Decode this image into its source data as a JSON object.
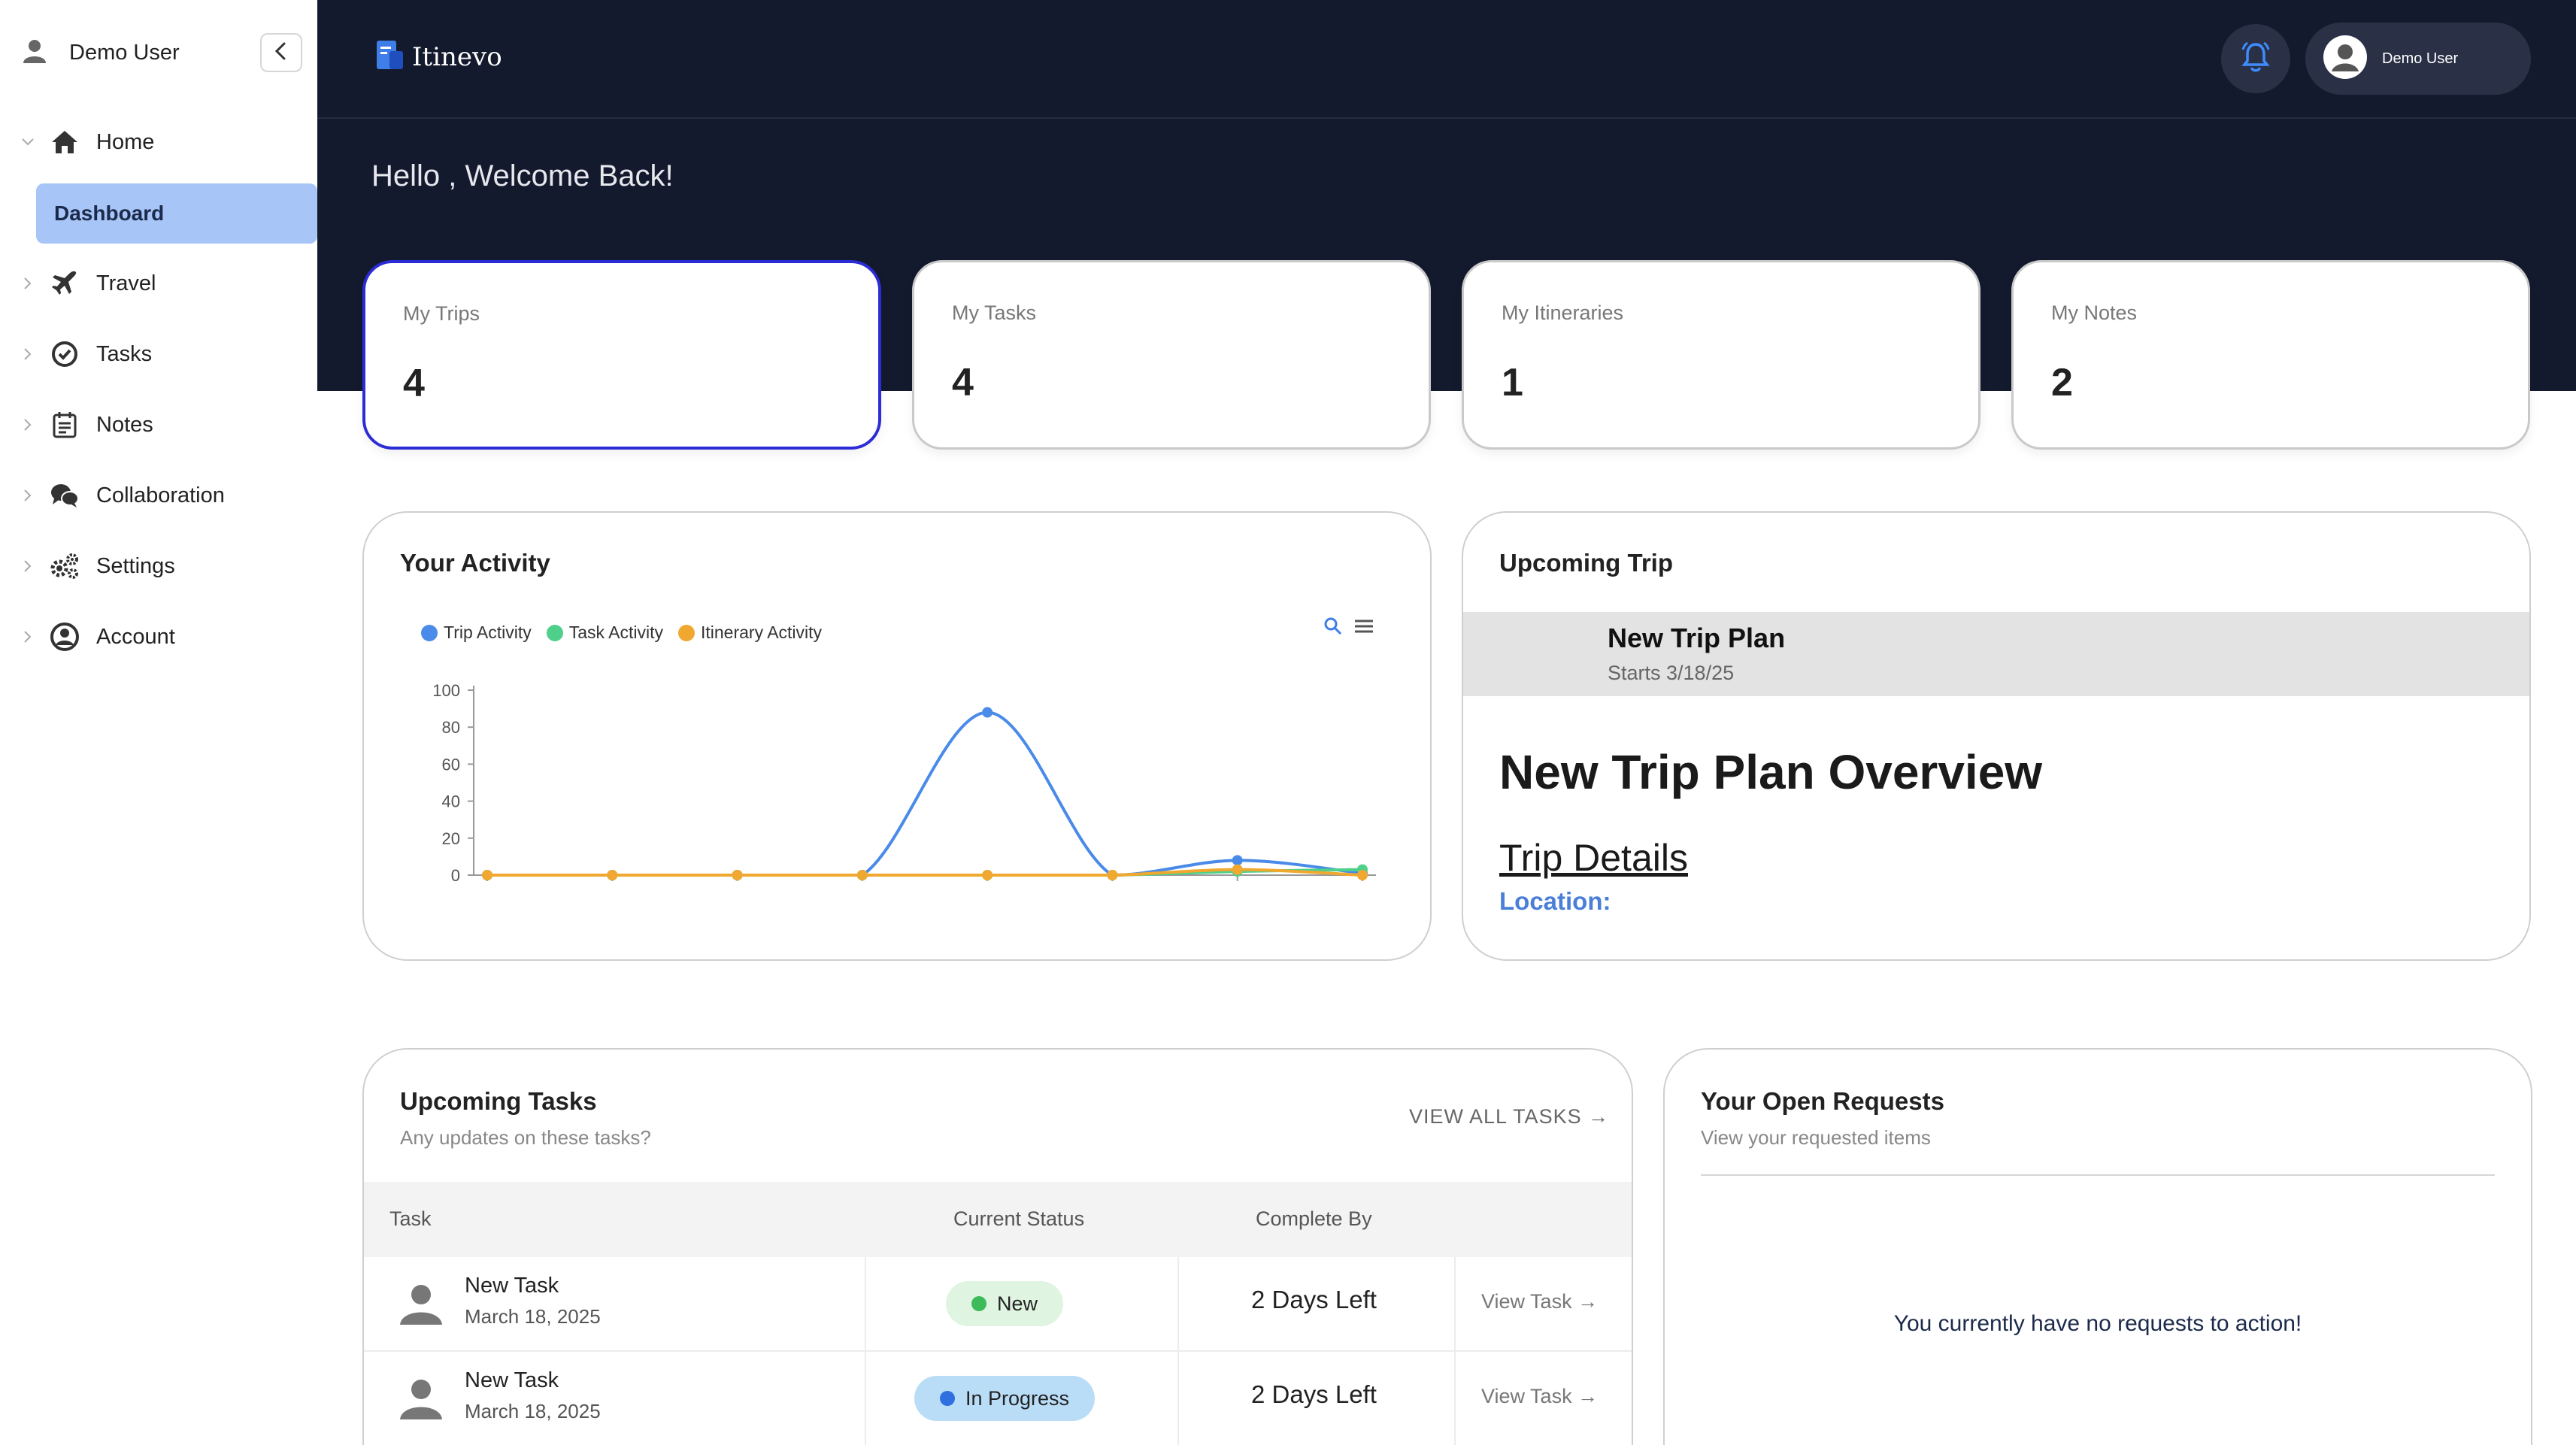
{
  "sidebar": {
    "user_name": "Demo User",
    "items": [
      {
        "label": "Home",
        "icon": "home-icon"
      },
      {
        "label": "Travel",
        "icon": "plane-icon"
      },
      {
        "label": "Tasks",
        "icon": "check-circle-icon"
      },
      {
        "label": "Notes",
        "icon": "notes-icon"
      },
      {
        "label": "Collaboration",
        "icon": "chat-icon"
      },
      {
        "label": "Settings",
        "icon": "gears-icon"
      },
      {
        "label": "Account",
        "icon": "account-icon"
      }
    ],
    "active_sub": "Dashboard"
  },
  "header": {
    "brand": "Itinevo",
    "user_name": "Demo User",
    "welcome": "Hello , Welcome Back!"
  },
  "stats": [
    {
      "label": "My Trips",
      "value": "4"
    },
    {
      "label": "My Tasks",
      "value": "4"
    },
    {
      "label": "My Itineraries",
      "value": "1"
    },
    {
      "label": "My Notes",
      "value": "2"
    }
  ],
  "activity": {
    "title": "Your Activity",
    "legend": [
      "Trip Activity",
      "Task Activity",
      "Itinerary Activity"
    ]
  },
  "chart_data": {
    "type": "line",
    "title": "",
    "xlabel": "",
    "ylabel": "",
    "ylim": [
      0,
      100
    ],
    "y_ticks": [
      "100",
      "80",
      "60",
      "40",
      "20",
      "0"
    ],
    "x": [
      0,
      1,
      2,
      3,
      4,
      5,
      6,
      7
    ],
    "series": [
      {
        "name": "Trip Activity",
        "color": "#4a8ae8",
        "values": [
          0,
          0,
          0,
          0,
          88,
          0,
          8,
          1
        ]
      },
      {
        "name": "Task Activity",
        "color": "#4fd08a",
        "values": [
          0,
          0,
          0,
          0,
          0,
          0,
          2,
          3
        ]
      },
      {
        "name": "Itinerary Activity",
        "color": "#f0a830",
        "values": [
          0,
          0,
          0,
          0,
          0,
          0,
          3,
          0
        ]
      }
    ],
    "grid": false,
    "legend_position": "top-left"
  },
  "upcoming_trip": {
    "title": "Upcoming Trip",
    "name": "New Trip Plan",
    "starts": "Starts 3/18/25",
    "overview": "New Trip Plan Overview",
    "details": "Trip Details",
    "location_label": "Location:"
  },
  "tasks": {
    "title": "Upcoming Tasks",
    "subtitle": "Any updates on these tasks?",
    "view_all": "VIEW ALL TASKS →",
    "columns": [
      "Task",
      "Current Status",
      "Complete By"
    ],
    "rows": [
      {
        "name": "New Task",
        "date": "March 18, 2025",
        "status": "New",
        "due": "2 Days Left",
        "action": "View Task →"
      },
      {
        "name": "New Task",
        "date": "March 18, 2025",
        "status": "In Progress",
        "due": "2 Days Left",
        "action": "View Task →"
      }
    ]
  },
  "requests": {
    "title": "Your Open Requests",
    "subtitle": "View your requested items",
    "empty": "You currently have no requests to action!"
  },
  "colors": {
    "header_bg": "#141a2e",
    "active_nav": "#a8c5f7",
    "active_card_border": "#2c2cd6",
    "status_new": "#dff4e1",
    "status_in_progress": "#b9dcf7"
  }
}
